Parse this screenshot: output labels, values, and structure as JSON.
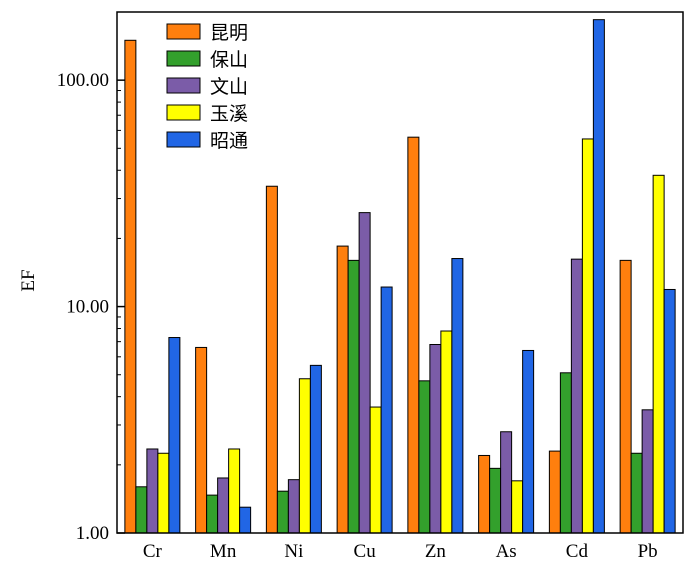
{
  "chart_data": {
    "type": "bar",
    "title": "",
    "xlabel": "",
    "ylabel": "EF",
    "yscale": "log",
    "ylim": [
      1,
      200
    ],
    "yticks": [
      1,
      10,
      100
    ],
    "ytick_labels": [
      "1.00",
      "10.00",
      "100.00"
    ],
    "grid": false,
    "legend_position": "top-left",
    "categories": [
      "Cr",
      "Mn",
      "Ni",
      "Cu",
      "Zn",
      "As",
      "Cd",
      "Pb"
    ],
    "series": [
      {
        "name": "昆明",
        "color": "#ff7f0e",
        "values": [
          150,
          6.6,
          34,
          18.5,
          56,
          2.2,
          2.3,
          16
        ]
      },
      {
        "name": "保山",
        "color": "#33a02c",
        "values": [
          1.6,
          1.47,
          1.53,
          16,
          4.7,
          1.93,
          5.1,
          2.25
        ]
      },
      {
        "name": "文山",
        "color": "#7b5ca8",
        "values": [
          2.35,
          1.75,
          1.72,
          26,
          6.8,
          2.8,
          16.2,
          3.5
        ]
      },
      {
        "name": "玉溪",
        "color": "#ffff00",
        "values": [
          2.25,
          2.35,
          4.8,
          3.6,
          7.8,
          1.7,
          55,
          38
        ]
      },
      {
        "name": "昭通",
        "color": "#2166e5",
        "values": [
          7.3,
          1.3,
          5.5,
          12.2,
          16.3,
          6.4,
          185,
          11.9
        ]
      }
    ]
  }
}
